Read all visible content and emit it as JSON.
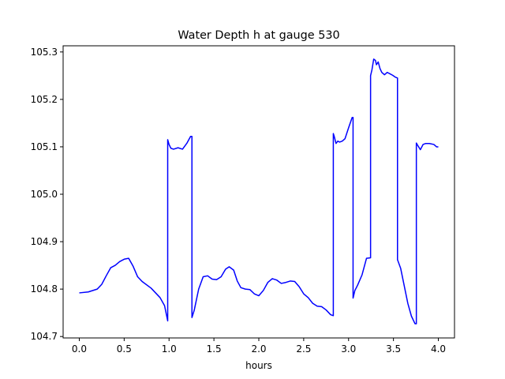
{
  "chart_data": {
    "type": "line",
    "title": "Water Depth h at gauge 530",
    "xlabel": "hours",
    "ylabel": "",
    "xlim": [
      -0.18,
      4.18
    ],
    "ylim": [
      104.697,
      105.313
    ],
    "grid": false,
    "x_ticks": [
      0.0,
      0.5,
      1.0,
      1.5,
      2.0,
      2.5,
      3.0,
      3.5,
      4.0
    ],
    "x_tick_labels": [
      "0.0",
      "0.5",
      "1.0",
      "1.5",
      "2.0",
      "2.5",
      "3.0",
      "3.5",
      "4.0"
    ],
    "y_ticks": [
      104.7,
      104.8,
      104.9,
      105.0,
      105.1,
      105.2,
      105.3
    ],
    "y_tick_labels": [
      "104.7",
      "104.8",
      "104.9",
      "105.0",
      "105.1",
      "105.2",
      "105.3"
    ],
    "series": [
      {
        "color": "#0000ff",
        "x": [
          0.0,
          0.1,
          0.2,
          0.25,
          0.3,
          0.35,
          0.4,
          0.45,
          0.5,
          0.55,
          0.6,
          0.65,
          0.7,
          0.8,
          0.9,
          0.95,
          0.985,
          0.985,
          1.0,
          1.02,
          1.05,
          1.1,
          1.15,
          1.2,
          1.24,
          1.255,
          1.255,
          1.28,
          1.33,
          1.38,
          1.43,
          1.48,
          1.53,
          1.58,
          1.63,
          1.67,
          1.72,
          1.76,
          1.8,
          1.85,
          1.9,
          1.95,
          2.0,
          2.05,
          2.1,
          2.15,
          2.2,
          2.25,
          2.3,
          2.35,
          2.4,
          2.45,
          2.5,
          2.55,
          2.6,
          2.65,
          2.7,
          2.75,
          2.8,
          2.83,
          2.83,
          2.84,
          2.86,
          2.88,
          2.9,
          2.93,
          2.96,
          3.0,
          3.04,
          3.05,
          3.05,
          3.07,
          3.1,
          3.15,
          3.2,
          3.245,
          3.245,
          3.26,
          3.28,
          3.3,
          3.31,
          3.33,
          3.35,
          3.37,
          3.4,
          3.43,
          3.46,
          3.49,
          3.52,
          3.545,
          3.545,
          3.58,
          3.62,
          3.66,
          3.7,
          3.74,
          3.755,
          3.755,
          3.77,
          3.8,
          3.83,
          3.86,
          3.9,
          3.95,
          3.98,
          4.0
        ],
        "y": [
          104.792,
          104.794,
          104.8,
          104.81,
          104.828,
          104.845,
          104.85,
          104.858,
          104.863,
          104.865,
          104.848,
          104.826,
          104.816,
          104.802,
          104.782,
          104.765,
          104.733,
          105.115,
          105.105,
          105.097,
          105.095,
          105.098,
          105.095,
          105.108,
          105.122,
          105.122,
          104.74,
          104.755,
          104.8,
          104.826,
          104.828,
          104.821,
          104.82,
          104.826,
          104.842,
          104.847,
          104.84,
          104.817,
          104.803,
          104.8,
          104.799,
          104.79,
          104.786,
          104.797,
          104.814,
          104.822,
          104.819,
          104.812,
          104.814,
          104.817,
          104.816,
          104.805,
          104.79,
          104.782,
          104.77,
          104.764,
          104.763,
          104.756,
          104.746,
          104.744,
          105.128,
          105.122,
          105.107,
          105.112,
          105.11,
          105.112,
          105.117,
          105.14,
          105.162,
          105.162,
          104.781,
          104.797,
          104.808,
          104.83,
          104.865,
          104.866,
          105.25,
          105.262,
          105.285,
          105.282,
          105.273,
          105.279,
          105.265,
          105.257,
          105.252,
          105.257,
          105.254,
          105.251,
          105.247,
          105.245,
          104.862,
          104.844,
          104.807,
          104.77,
          104.743,
          104.727,
          104.727,
          105.108,
          105.103,
          105.094,
          105.105,
          105.107,
          105.107,
          105.105,
          105.1,
          105.1
        ]
      }
    ]
  }
}
